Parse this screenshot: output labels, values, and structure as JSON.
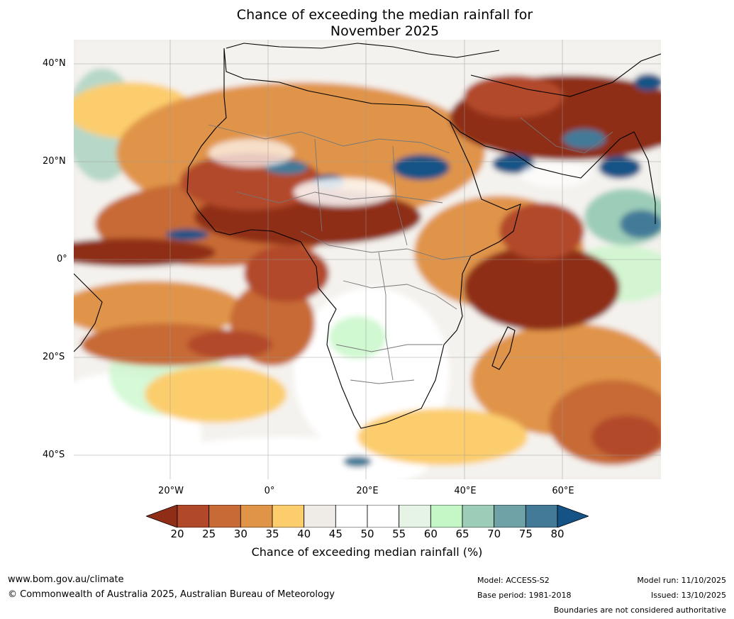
{
  "title": {
    "line1": "Chance of exceeding the median rainfall for",
    "line2": "November 2025"
  },
  "map": {
    "lat_labels": [
      "40°N",
      "20°N",
      "0°",
      "20°S",
      "40°S"
    ],
    "lon_labels": [
      "20°W",
      "0°",
      "20°E",
      "40°E",
      "60°E"
    ],
    "lat_range": [
      -45,
      45
    ],
    "lon_range": [
      -40,
      80
    ]
  },
  "colorbar": {
    "ticks": [
      "20",
      "25",
      "30",
      "35",
      "40",
      "45",
      "50",
      "55",
      "60",
      "65",
      "70",
      "75",
      "80"
    ],
    "colors": [
      "#8f2d17",
      "#b2482a",
      "#c76a35",
      "#e09448",
      "#fccd6d",
      "#efece7",
      "#ffffff",
      "#ffffff",
      "#e6f4e6",
      "#c4f6c6",
      "#9ccdb8",
      "#6ea2a6",
      "#437a98",
      "#155286"
    ],
    "label": "Chance of exceeding median rainfall (%)"
  },
  "footer": {
    "url": "www.bom.gov.au/climate",
    "copyright": "© Commonwealth of Australia 2025, Australian Bureau of Meteorology",
    "model": "Model: ACCESS-S2",
    "base_period": "Base period: 1981-2018",
    "model_run": "Model run: 11/10/2025",
    "issued": "Issued: 13/10/2025",
    "disclaimer": "Boundaries are not considered authoritative"
  }
}
